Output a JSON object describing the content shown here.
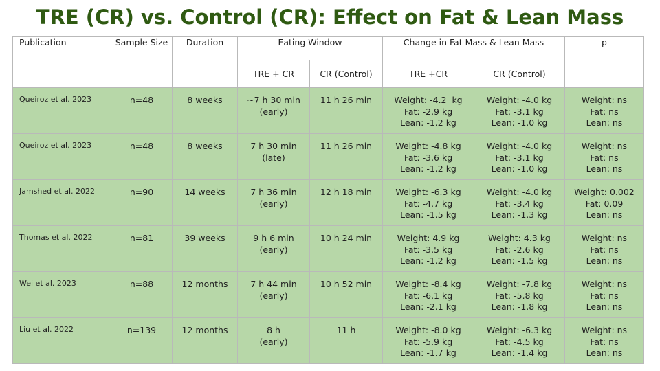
{
  "title": "TRE (CR) vs. Control (CR): Effect on Fat & Lean Mass",
  "colors": {
    "title": "#2f5a12",
    "row_bg": "#b7d7a8",
    "border": "#b9b9b9"
  },
  "headers": {
    "publication": "Publication",
    "sample_size": "Sample Size",
    "duration": "Duration",
    "eating_window": "Eating Window",
    "change": "Change in Fat Mass & Lean Mass",
    "p": "p",
    "tre_cr": "TRE + CR",
    "cr_control": "CR (Control)",
    "tre_cr_change": "TRE +CR",
    "cr_control_change": "CR (Control)"
  },
  "rows": [
    {
      "publication": "Queiroz et al. 2023",
      "sample": "n=48",
      "duration": "8 weeks",
      "tre_window": [
        "~7 h 30 min",
        "(early)"
      ],
      "cr_window": "11 h 26 min",
      "tre_change": [
        "Weight: -4.2  kg",
        "Fat: -2.9 kg",
        "Lean: -1.2 kg"
      ],
      "cr_change": [
        "Weight: -4.0 kg",
        "Fat: -3.1 kg",
        "Lean: -1.0 kg"
      ],
      "p": [
        "Weight: ns",
        "Fat: ns",
        "Lean: ns"
      ]
    },
    {
      "publication": "Queiroz et al. 2023",
      "sample": "n=48",
      "duration": "8 weeks",
      "tre_window": [
        "7 h 30 min",
        "(late)"
      ],
      "cr_window": "11 h 26 min",
      "tre_change": [
        "Weight: -4.8 kg",
        "Fat: -3.6 kg",
        "Lean: -1.2 kg"
      ],
      "cr_change": [
        "Weight: -4.0 kg",
        "Fat: -3.1 kg",
        "Lean: -1.0 kg"
      ],
      "p": [
        "Weight: ns",
        "Fat: ns",
        "Lean: ns"
      ]
    },
    {
      "publication": "Jamshed et al. 2022",
      "sample": "n=90",
      "duration": "14 weeks",
      "tre_window": [
        "7 h 36 min",
        "(early)"
      ],
      "cr_window": "12 h 18 min",
      "tre_change": [
        "Weight: -6.3 kg",
        "Fat: -4.7 kg",
        "Lean: -1.5 kg"
      ],
      "cr_change": [
        "Weight: -4.0 kg",
        "Fat: -3.4 kg",
        "Lean: -1.3 kg"
      ],
      "p": [
        "Weight: 0.002",
        "Fat: 0.09",
        "Lean: ns"
      ]
    },
    {
      "publication": "Thomas et al. 2022",
      "sample": "n=81",
      "duration": "39 weeks",
      "tre_window": [
        "9 h 6 min",
        "(early)"
      ],
      "cr_window": "10 h 24 min",
      "tre_change": [
        "Weight: 4.9 kg",
        "Fat: -3.5 kg",
        "Lean: -1.2 kg"
      ],
      "cr_change": [
        "Weight: 4.3 kg",
        "Fat: -2.6 kg",
        "Lean: -1.5 kg"
      ],
      "p": [
        "Weight: ns",
        "Fat: ns",
        "Lean: ns"
      ]
    },
    {
      "publication": "Wei et al. 2023",
      "sample": "n=88",
      "duration": "12 months",
      "tre_window": [
        "7 h 44 min",
        "(early)"
      ],
      "cr_window": "10 h 52 min",
      "tre_change": [
        "Weight: -8.4 kg",
        "Fat: -6.1 kg",
        "Lean: -2.1 kg"
      ],
      "cr_change": [
        "Weight: -7.8 kg",
        "Fat: -5.8 kg",
        "Lean: -1.8 kg"
      ],
      "p": [
        "Weight: ns",
        "Fat: ns",
        "Lean: ns"
      ]
    },
    {
      "publication": "Liu et al. 2022",
      "sample": "n=139",
      "duration": "12 months",
      "tre_window": [
        "8 h",
        "(early)"
      ],
      "cr_window": "11 h",
      "tre_change": [
        "Weight: -8.0 kg",
        "Fat: -5.9 kg",
        "Lean: -1.7 kg"
      ],
      "cr_change": [
        "Weight: -6.3 kg",
        "Fat: -4.5 kg",
        "Lean: -1.4 kg"
      ],
      "p": [
        "Weight: ns",
        "Fat: ns",
        "Lean: ns"
      ]
    }
  ]
}
